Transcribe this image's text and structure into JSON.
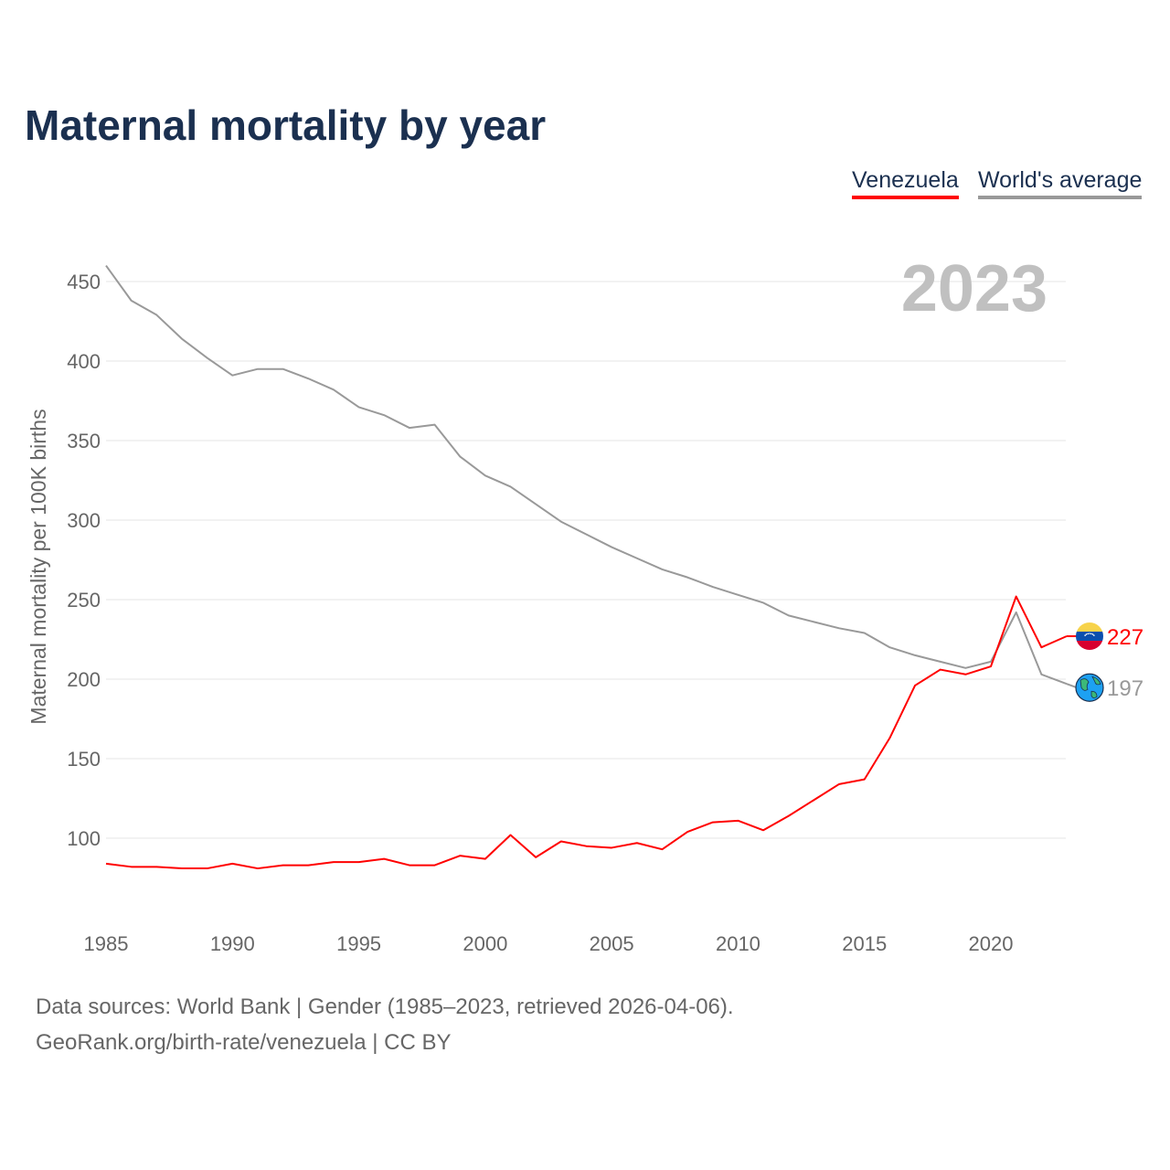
{
  "chart_data": {
    "type": "line",
    "title": "Maternal mortality by year",
    "ylabel": "Maternal mortality per 100K births",
    "xlabel": "",
    "year_watermark": "2023",
    "xlim": [
      1985,
      2023
    ],
    "ylim": [
      50,
      460
    ],
    "x_ticks": [
      1985,
      1990,
      1995,
      2000,
      2005,
      2010,
      2015,
      2020
    ],
    "y_ticks": [
      100,
      150,
      200,
      250,
      300,
      350,
      400,
      450
    ],
    "grid": true,
    "legend_placement": "top-right",
    "x": [
      1985,
      1986,
      1987,
      1988,
      1989,
      1990,
      1991,
      1992,
      1993,
      1994,
      1995,
      1996,
      1997,
      1998,
      1999,
      2000,
      2001,
      2002,
      2003,
      2004,
      2005,
      2006,
      2007,
      2008,
      2009,
      2010,
      2011,
      2012,
      2013,
      2014,
      2015,
      2016,
      2017,
      2018,
      2019,
      2020,
      2021,
      2022,
      2023
    ],
    "series": [
      {
        "name": "Venezuela",
        "color": "#ff0000",
        "end_label": "227",
        "values": [
          84,
          82,
          82,
          81,
          81,
          84,
          81,
          83,
          83,
          85,
          85,
          87,
          83,
          83,
          89,
          87,
          102,
          88,
          98,
          95,
          94,
          97,
          93,
          104,
          110,
          111,
          105,
          114,
          124,
          134,
          137,
          163,
          196,
          206,
          203,
          208,
          252,
          220,
          227
        ]
      },
      {
        "name": "World's average",
        "color": "#999999",
        "end_label": "197",
        "values": [
          460,
          438,
          429,
          414,
          402,
          391,
          395,
          395,
          389,
          382,
          371,
          366,
          358,
          360,
          340,
          328,
          321,
          310,
          299,
          291,
          283,
          276,
          269,
          264,
          258,
          253,
          248,
          240,
          236,
          232,
          229,
          220,
          215,
          211,
          207,
          211,
          242,
          203,
          197
        ]
      }
    ]
  },
  "footer": {
    "line1": "Data sources: World Bank | Gender (1985–2023, retrieved 2026-04-06).",
    "line2": "GeoRank.org/birth-rate/venezuela | CC BY"
  }
}
